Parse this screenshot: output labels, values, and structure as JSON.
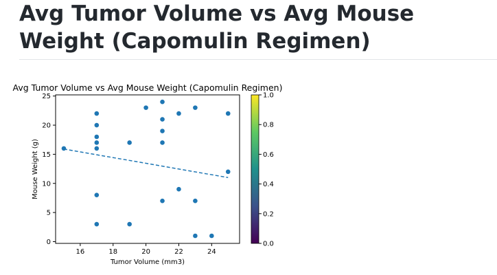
{
  "page": {
    "heading": "Avg Tumor Volume vs Avg Mouse Weight (Capomulin Regimen)"
  },
  "chart_data": {
    "type": "scatter",
    "title": "Avg Tumor Volume vs Avg Mouse Weight (Capomulin Regimen)",
    "xlabel": "Tumor Volume (mm3)",
    "ylabel": "Mouse Weight (g)",
    "xlim": [
      14.5,
      25.7
    ],
    "ylim": [
      -0.3,
      25.2
    ],
    "xticks": [
      16,
      18,
      20,
      22,
      24
    ],
    "yticks": [
      0,
      5,
      10,
      15,
      20,
      25
    ],
    "grid": false,
    "marker_color": "#1f77b4",
    "line_color": "#1f77b4",
    "points": [
      {
        "x": 15,
        "y": 16
      },
      {
        "x": 17,
        "y": 22
      },
      {
        "x": 17,
        "y": 20
      },
      {
        "x": 17,
        "y": 18
      },
      {
        "x": 17,
        "y": 17
      },
      {
        "x": 17,
        "y": 16
      },
      {
        "x": 17,
        "y": 8
      },
      {
        "x": 17,
        "y": 3
      },
      {
        "x": 19,
        "y": 17
      },
      {
        "x": 19,
        "y": 3
      },
      {
        "x": 20,
        "y": 23
      },
      {
        "x": 21,
        "y": 24
      },
      {
        "x": 21,
        "y": 21
      },
      {
        "x": 21,
        "y": 19
      },
      {
        "x": 21,
        "y": 17
      },
      {
        "x": 21,
        "y": 7
      },
      {
        "x": 22,
        "y": 22
      },
      {
        "x": 22,
        "y": 9
      },
      {
        "x": 23,
        "y": 23
      },
      {
        "x": 23,
        "y": 7
      },
      {
        "x": 23,
        "y": 1
      },
      {
        "x": 24,
        "y": 1
      },
      {
        "x": 25,
        "y": 22
      },
      {
        "x": 25,
        "y": 12
      }
    ],
    "regression_line": {
      "x": [
        15,
        25
      ],
      "y": [
        15.9,
        11.0
      ],
      "style": "dashed"
    },
    "colorbar": {
      "colormap": "viridis",
      "range": [
        0.0,
        1.0
      ],
      "tick_values": [
        0.0,
        0.2,
        0.4,
        0.6,
        0.8,
        1.0
      ],
      "tick_labels": [
        "0.0",
        "0.2",
        "0.4",
        "0.6",
        "0.8",
        "1.0"
      ],
      "stops": [
        "#440154",
        "#3b528b",
        "#21918c",
        "#5ec962",
        "#fde725"
      ]
    }
  }
}
